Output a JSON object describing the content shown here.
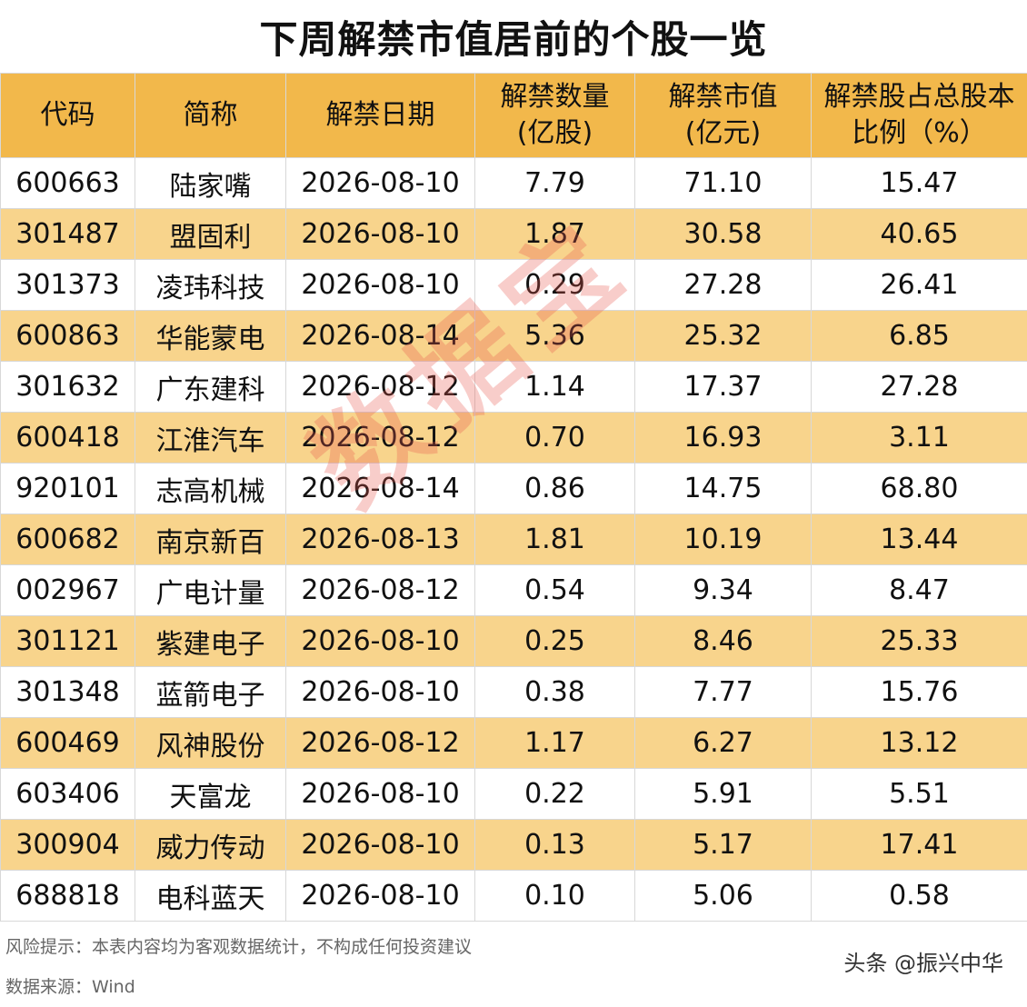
{
  "title": "下周解禁市值居前的个股一览",
  "headers": [
    {
      "line1": "代码",
      "line2": ""
    },
    {
      "line1": "简称",
      "line2": ""
    },
    {
      "line1": "解禁日期",
      "line2": ""
    },
    {
      "line1": "解禁数量",
      "line2": "(亿股)"
    },
    {
      "line1": "解禁市值",
      "line2": "(亿元)"
    },
    {
      "line1": "解禁股占总股本",
      "line2": "比例（%）"
    }
  ],
  "rows": [
    [
      "600663",
      "陆家嘴",
      "2026-08-10",
      "7.79",
      "71.10",
      "15.47"
    ],
    [
      "301487",
      "盟固利",
      "2026-08-10",
      "1.87",
      "30.58",
      "40.65"
    ],
    [
      "301373",
      "凌玮科技",
      "2026-08-10",
      "0.29",
      "27.28",
      "26.41"
    ],
    [
      "600863",
      "华能蒙电",
      "2026-08-14",
      "5.36",
      "25.32",
      "6.85"
    ],
    [
      "301632",
      "广东建科",
      "2026-08-12",
      "1.14",
      "17.37",
      "27.28"
    ],
    [
      "600418",
      "江淮汽车",
      "2026-08-12",
      "0.70",
      "16.93",
      "3.11"
    ],
    [
      "920101",
      "志高机械",
      "2026-08-14",
      "0.86",
      "14.75",
      "68.80"
    ],
    [
      "600682",
      "南京新百",
      "2026-08-13",
      "1.81",
      "10.19",
      "13.44"
    ],
    [
      "002967",
      "广电计量",
      "2026-08-12",
      "0.54",
      "9.34",
      "8.47"
    ],
    [
      "301121",
      "紫建电子",
      "2026-08-10",
      "0.25",
      "8.46",
      "25.33"
    ],
    [
      "301348",
      "蓝箭电子",
      "2026-08-10",
      "0.38",
      "7.77",
      "15.76"
    ],
    [
      "600469",
      "风神股份",
      "2026-08-12",
      "1.17",
      "6.27",
      "13.12"
    ],
    [
      "603406",
      "天富龙",
      "2026-08-10",
      "0.22",
      "5.91",
      "5.51"
    ],
    [
      "300904",
      "威力传动",
      "2026-08-10",
      "0.13",
      "5.17",
      "17.41"
    ],
    [
      "688818",
      "电科蓝天",
      "2026-08-10",
      "0.10",
      "5.06",
      "0.58"
    ]
  ],
  "notes": {
    "risk": "风险提示：本表内容均为客观数据统计，不构成任何投资建议",
    "source": "数据来源：Wind"
  },
  "watermark": "数据宝",
  "brand": "头条 @振兴中华",
  "colors": {
    "header_bg": "#f2b84b",
    "stripe_bg": "#f8d48c",
    "watermark": "#e85a50"
  }
}
